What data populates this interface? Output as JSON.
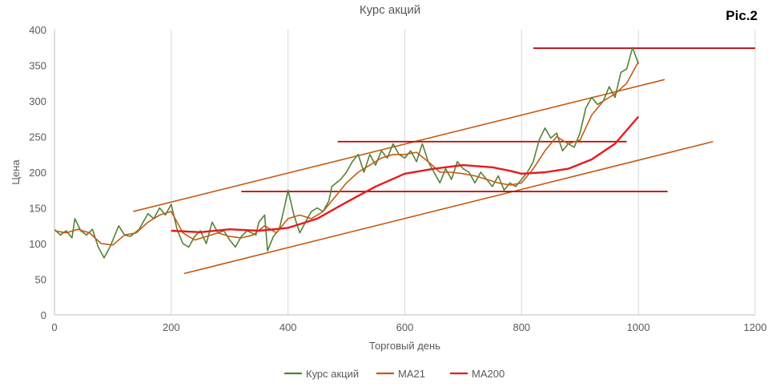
{
  "figure_label": "Pic.2",
  "chart_data": {
    "type": "line",
    "title": "Курс акций",
    "xlabel": "Торговый день",
    "ylabel": "Цена",
    "xlim": [
      0,
      1200
    ],
    "ylim": [
      0,
      400
    ],
    "x_ticks": [
      0,
      200,
      400,
      600,
      800,
      1000,
      1200
    ],
    "y_ticks": [
      0,
      50,
      100,
      150,
      200,
      250,
      300,
      350,
      400
    ],
    "grid": "vertical",
    "legend_position": "bottom",
    "series": [
      {
        "name": "Курс акций",
        "color": "#548235",
        "points": [
          [
            0,
            120
          ],
          [
            10,
            112
          ],
          [
            20,
            118
          ],
          [
            30,
            108
          ],
          [
            35,
            135
          ],
          [
            45,
            118
          ],
          [
            55,
            112
          ],
          [
            65,
            120
          ],
          [
            75,
            95
          ],
          [
            85,
            80
          ],
          [
            95,
            95
          ],
          [
            110,
            125
          ],
          [
            120,
            112
          ],
          [
            130,
            110
          ],
          [
            145,
            120
          ],
          [
            160,
            142
          ],
          [
            170,
            135
          ],
          [
            180,
            150
          ],
          [
            190,
            140
          ],
          [
            200,
            155
          ],
          [
            210,
            120
          ],
          [
            220,
            100
          ],
          [
            230,
            95
          ],
          [
            240,
            110
          ],
          [
            250,
            118
          ],
          [
            260,
            100
          ],
          [
            270,
            130
          ],
          [
            280,
            115
          ],
          [
            290,
            118
          ],
          [
            300,
            105
          ],
          [
            310,
            95
          ],
          [
            320,
            110
          ],
          [
            330,
            118
          ],
          [
            345,
            112
          ],
          [
            350,
            130
          ],
          [
            360,
            140
          ],
          [
            365,
            90
          ],
          [
            375,
            110
          ],
          [
            385,
            120
          ],
          [
            395,
            155
          ],
          [
            400,
            175
          ],
          [
            410,
            140
          ],
          [
            420,
            115
          ],
          [
            430,
            130
          ],
          [
            440,
            145
          ],
          [
            450,
            150
          ],
          [
            460,
            145
          ],
          [
            470,
            160
          ],
          [
            475,
            180
          ],
          [
            490,
            190
          ],
          [
            500,
            200
          ],
          [
            510,
            215
          ],
          [
            520,
            225
          ],
          [
            530,
            200
          ],
          [
            540,
            225
          ],
          [
            550,
            210
          ],
          [
            560,
            230
          ],
          [
            570,
            220
          ],
          [
            580,
            240
          ],
          [
            590,
            225
          ],
          [
            600,
            220
          ],
          [
            610,
            230
          ],
          [
            620,
            215
          ],
          [
            630,
            240
          ],
          [
            640,
            215
          ],
          [
            650,
            200
          ],
          [
            660,
            185
          ],
          [
            670,
            205
          ],
          [
            680,
            190
          ],
          [
            690,
            215
          ],
          [
            700,
            205
          ],
          [
            710,
            200
          ],
          [
            720,
            185
          ],
          [
            730,
            200
          ],
          [
            740,
            190
          ],
          [
            750,
            180
          ],
          [
            760,
            195
          ],
          [
            770,
            175
          ],
          [
            780,
            185
          ],
          [
            790,
            180
          ],
          [
            800,
            190
          ],
          [
            810,
            200
          ],
          [
            820,
            215
          ],
          [
            830,
            245
          ],
          [
            840,
            262
          ],
          [
            850,
            248
          ],
          [
            860,
            255
          ],
          [
            870,
            230
          ],
          [
            880,
            240
          ],
          [
            890,
            235
          ],
          [
            900,
            255
          ],
          [
            910,
            290
          ],
          [
            920,
            305
          ],
          [
            930,
            295
          ],
          [
            940,
            300
          ],
          [
            950,
            320
          ],
          [
            960,
            305
          ],
          [
            970,
            340
          ],
          [
            980,
            345
          ],
          [
            990,
            375
          ],
          [
            1000,
            352
          ]
        ]
      },
      {
        "name": "MA21",
        "color": "#C55A11",
        "points": [
          [
            0,
            118
          ],
          [
            20,
            115
          ],
          [
            40,
            120
          ],
          [
            60,
            115
          ],
          [
            80,
            100
          ],
          [
            100,
            98
          ],
          [
            120,
            112
          ],
          [
            140,
            115
          ],
          [
            160,
            130
          ],
          [
            180,
            140
          ],
          [
            200,
            145
          ],
          [
            220,
            115
          ],
          [
            240,
            105
          ],
          [
            260,
            110
          ],
          [
            280,
            115
          ],
          [
            300,
            110
          ],
          [
            320,
            108
          ],
          [
            340,
            112
          ],
          [
            360,
            125
          ],
          [
            380,
            115
          ],
          [
            400,
            135
          ],
          [
            420,
            140
          ],
          [
            440,
            135
          ],
          [
            460,
            145
          ],
          [
            480,
            165
          ],
          [
            500,
            185
          ],
          [
            520,
            200
          ],
          [
            540,
            210
          ],
          [
            560,
            220
          ],
          [
            580,
            225
          ],
          [
            600,
            225
          ],
          [
            620,
            228
          ],
          [
            640,
            215
          ],
          [
            660,
            200
          ],
          [
            680,
            200
          ],
          [
            700,
            198
          ],
          [
            720,
            195
          ],
          [
            740,
            190
          ],
          [
            760,
            185
          ],
          [
            780,
            182
          ],
          [
            800,
            185
          ],
          [
            820,
            205
          ],
          [
            840,
            230
          ],
          [
            860,
            250
          ],
          [
            880,
            240
          ],
          [
            900,
            245
          ],
          [
            920,
            280
          ],
          [
            940,
            300
          ],
          [
            960,
            310
          ],
          [
            980,
            325
          ],
          [
            1000,
            355
          ]
        ]
      },
      {
        "name": "MA200",
        "color": "#E8191C",
        "points": [
          [
            200,
            118
          ],
          [
            250,
            116
          ],
          [
            300,
            120
          ],
          [
            350,
            118
          ],
          [
            400,
            122
          ],
          [
            450,
            135
          ],
          [
            500,
            158
          ],
          [
            550,
            180
          ],
          [
            600,
            198
          ],
          [
            650,
            205
          ],
          [
            700,
            210
          ],
          [
            750,
            207
          ],
          [
            780,
            202
          ],
          [
            800,
            198
          ],
          [
            840,
            200
          ],
          [
            880,
            205
          ],
          [
            920,
            218
          ],
          [
            960,
            240
          ],
          [
            1000,
            278
          ]
        ]
      }
    ],
    "trend_lines": [
      {
        "color": "#C55A11",
        "from": [
          135,
          145
        ],
        "to": [
          1045,
          330
        ]
      },
      {
        "color": "#C55A11",
        "from": [
          222,
          58
        ],
        "to": [
          1128,
          243
        ]
      }
    ],
    "horizontal_lines": [
      {
        "color": "#C00000",
        "y": 374,
        "x_from": 820,
        "x_to": 1200
      },
      {
        "color": "#C00000",
        "y": 243,
        "x_from": 485,
        "x_to": 980
      },
      {
        "color": "#C00000",
        "y": 173,
        "x_from": 320,
        "x_to": 1050
      }
    ]
  }
}
